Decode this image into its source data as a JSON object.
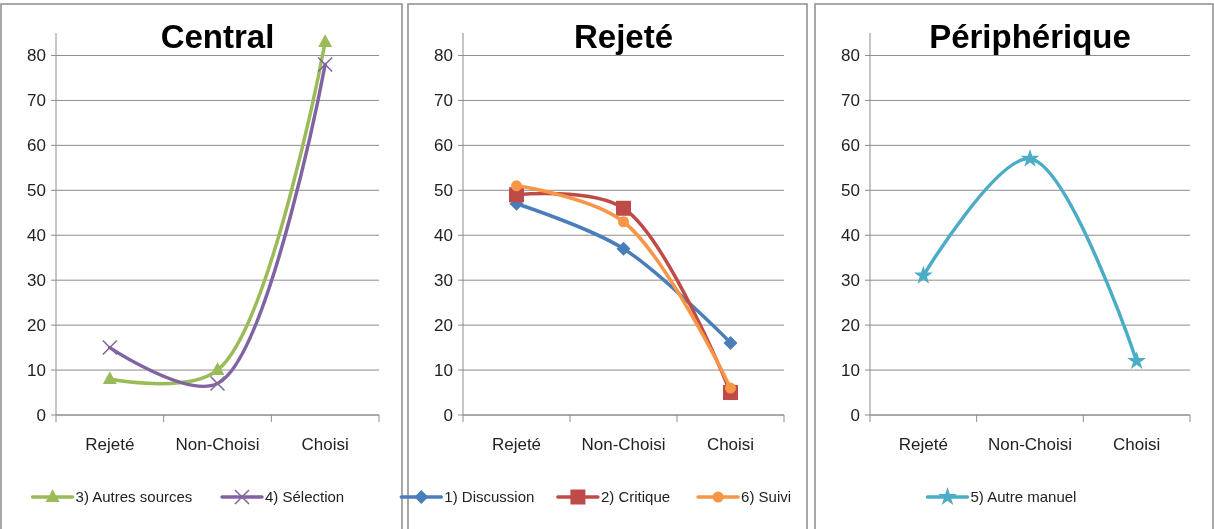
{
  "chart_data": [
    {
      "type": "line",
      "title": "Central",
      "categories": [
        "Rejeté",
        "Non-Choisi",
        "Choisi"
      ],
      "ylim": [
        0,
        85
      ],
      "yticks": [
        0,
        10,
        20,
        30,
        40,
        50,
        60,
        70,
        80
      ],
      "grid": "y",
      "legend": "bottom",
      "series": [
        {
          "name": "3) Autres sources",
          "color": "#9bbb59",
          "marker": "triangle",
          "values": [
            8,
            10,
            83
          ]
        },
        {
          "name": "4) Sélection",
          "color": "#8064a2",
          "marker": "cross",
          "values": [
            15,
            7,
            78
          ]
        }
      ]
    },
    {
      "type": "line",
      "title": "Rejeté",
      "categories": [
        "Rejeté",
        "Non-Choisi",
        "Choisi"
      ],
      "ylim": [
        0,
        85
      ],
      "yticks": [
        0,
        10,
        20,
        30,
        40,
        50,
        60,
        70,
        80
      ],
      "grid": "y",
      "legend": "bottom",
      "series": [
        {
          "name": "1) Discussion",
          "color": "#4a7ebb",
          "marker": "diamond",
          "values": [
            47,
            37,
            16
          ]
        },
        {
          "name": "2) Critique",
          "color": "#be4b48",
          "marker": "square",
          "values": [
            49,
            46,
            5
          ]
        },
        {
          "name": "6) Suivi",
          "color": "#f79646",
          "marker": "circle",
          "values": [
            51,
            43,
            6
          ]
        }
      ]
    },
    {
      "type": "line",
      "title": "Périphérique",
      "categories": [
        "Rejeté",
        "Non-Choisi",
        "Choisi"
      ],
      "ylim": [
        0,
        85
      ],
      "yticks": [
        0,
        10,
        20,
        30,
        40,
        50,
        60,
        70,
        80
      ],
      "grid": "y",
      "legend": "bottom",
      "series": [
        {
          "name": "5) Autre manuel",
          "color": "#4bacc6",
          "marker": "star",
          "values": [
            31,
            57,
            12
          ]
        }
      ]
    }
  ]
}
